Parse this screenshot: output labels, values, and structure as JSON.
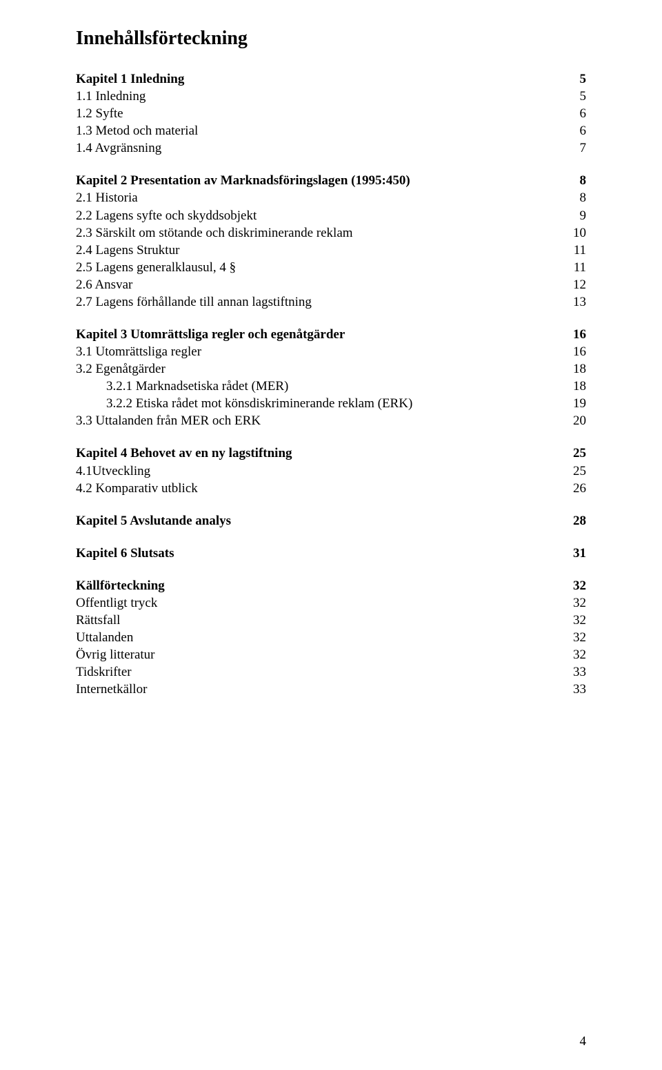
{
  "title": "Innehållsförteckning",
  "page_number": "4",
  "toc": [
    {
      "level": "chapter",
      "text": "Kapitel 1 Inledning",
      "page": "5"
    },
    {
      "level": "1",
      "text": "1.1 Inledning",
      "page": "5"
    },
    {
      "level": "1",
      "text": "1.2 Syfte",
      "page": "6"
    },
    {
      "level": "1",
      "text": "1.3 Metod och material",
      "page": "6"
    },
    {
      "level": "1",
      "text": "1.4 Avgränsning",
      "page": "7"
    },
    {
      "level": "chapter",
      "text": "Kapitel 2 Presentation av Marknadsföringslagen (1995:450)",
      "page": "8"
    },
    {
      "level": "1",
      "text": "2.1 Historia",
      "page": "8"
    },
    {
      "level": "1",
      "text": "2.2 Lagens syfte och skyddsobjekt",
      "page": "9"
    },
    {
      "level": "1",
      "text": "2.3 Särskilt om stötande och diskriminerande reklam",
      "page": "10"
    },
    {
      "level": "1",
      "text": "2.4 Lagens Struktur",
      "page": "11"
    },
    {
      "level": "1",
      "text": "2.5 Lagens generalklausul, 4 §",
      "page": "11"
    },
    {
      "level": "1",
      "text": "2.6 Ansvar",
      "page": "12"
    },
    {
      "level": "1",
      "text": "2.7 Lagens förhållande till annan lagstiftning",
      "page": "13"
    },
    {
      "level": "chapter",
      "text": "Kapitel 3 Utomrättsliga regler och egenåtgärder",
      "page": "16"
    },
    {
      "level": "1",
      "text": "3.1 Utomrättsliga regler",
      "page": "16"
    },
    {
      "level": "1",
      "text": "3.2 Egenåtgärder",
      "page": "18"
    },
    {
      "level": "2",
      "text": "3.2.1 Marknadsetiska rådet (MER)",
      "page": "18"
    },
    {
      "level": "2",
      "text": "3.2.2 Etiska rådet mot könsdiskriminerande reklam (ERK)",
      "page": "19"
    },
    {
      "level": "1",
      "text": "3.3 Uttalanden från MER och ERK",
      "page": "20"
    },
    {
      "level": "chapter",
      "text": "Kapitel 4 Behovet av en ny lagstiftning",
      "page": "25"
    },
    {
      "level": "1",
      "text": "4.1Utveckling",
      "page": "25"
    },
    {
      "level": "1",
      "text": "4.2 Komparativ utblick",
      "page": "26"
    },
    {
      "level": "chapter",
      "text": "Kapitel 5 Avslutande analys",
      "page": "28"
    },
    {
      "level": "chapter",
      "text": "Kapitel 6 Slutsats",
      "page": "31"
    },
    {
      "level": "chapter",
      "text": "Källförteckning",
      "page": "32"
    },
    {
      "level": "1",
      "text": "Offentligt tryck",
      "page": "32"
    },
    {
      "level": "1",
      "text": "Rättsfall",
      "page": "32"
    },
    {
      "level": "1",
      "text": "Uttalanden",
      "page": "32"
    },
    {
      "level": "1",
      "text": "Övrig litteratur",
      "page": "32"
    },
    {
      "level": "1",
      "text": "Tidskrifter",
      "page": "33"
    },
    {
      "level": "1",
      "text": "Internetkällor",
      "page": "33"
    }
  ]
}
